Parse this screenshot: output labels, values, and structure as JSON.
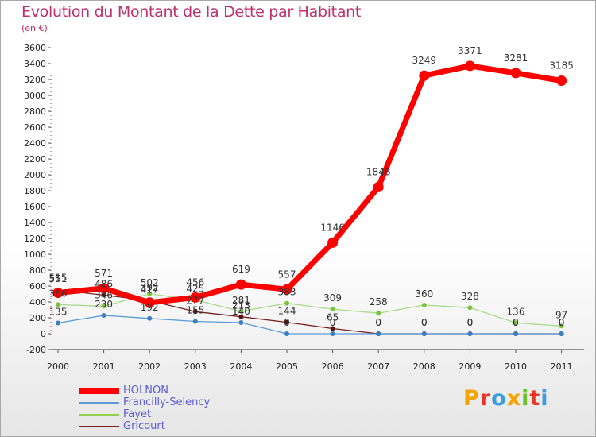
{
  "header": {
    "title": "Evolution du Montant de la Dette par Habitant",
    "subtitle": "(en €)"
  },
  "logo": {
    "text": "Proxiti"
  },
  "chart_data": {
    "type": "line",
    "title": "Evolution du Montant de la Dette par Habitant",
    "subtitle": "(en €)",
    "x": [
      "2000",
      "2001",
      "2002",
      "2003",
      "2004",
      "2005",
      "2006",
      "2007",
      "2008",
      "2009",
      "2010",
      "2011"
    ],
    "ylim": [
      -200,
      3600
    ],
    "yticks": [
      -200,
      0,
      200,
      400,
      600,
      800,
      1000,
      1200,
      1400,
      1600,
      1800,
      2000,
      2200,
      2400,
      2600,
      2800,
      3000,
      3200,
      3400,
      3600
    ],
    "grid": false,
    "legend_position": "bottom-left",
    "series": [
      {
        "name": "HOLNON",
        "color": "#ff0000",
        "values": [
          515,
          571,
          392,
          456,
          619,
          557,
          1146,
          1846,
          3249,
          3371,
          3281,
          3185
        ],
        "labels": [
          "515",
          "571",
          "392",
          "456",
          "619",
          "557",
          "1146",
          "1846",
          "3249",
          "3371",
          "3281",
          "3185"
        ]
      },
      {
        "name": "Francilly-Selency",
        "color": "#5b9bd5",
        "values": [
          135,
          230,
          192,
          155,
          140,
          0,
          0,
          0,
          0,
          0,
          0,
          0
        ],
        "labels": [
          "135",
          "230",
          "192",
          "155",
          "140",
          "0",
          "0",
          "0",
          "0",
          "0",
          "0",
          "0"
        ]
      },
      {
        "name": "Fayet",
        "color": "#92d050",
        "values": [
          366,
          346,
          502,
          425,
          281,
          383,
          309,
          258,
          360,
          328,
          136,
          97
        ],
        "labels": [
          "366",
          "346",
          "502",
          "425",
          "281",
          "383",
          "309",
          "258",
          "360",
          "328",
          "136",
          "97"
        ]
      },
      {
        "name": "Gricourt",
        "color": "#7b2020",
        "values": [
          551,
          486,
          417,
          277,
          213,
          144,
          65,
          0,
          0,
          0,
          0,
          0
        ],
        "labels": [
          "551",
          "486",
          "417",
          "277",
          "213",
          "144",
          "65",
          "0",
          "0",
          "0",
          "0",
          "0"
        ]
      }
    ]
  }
}
